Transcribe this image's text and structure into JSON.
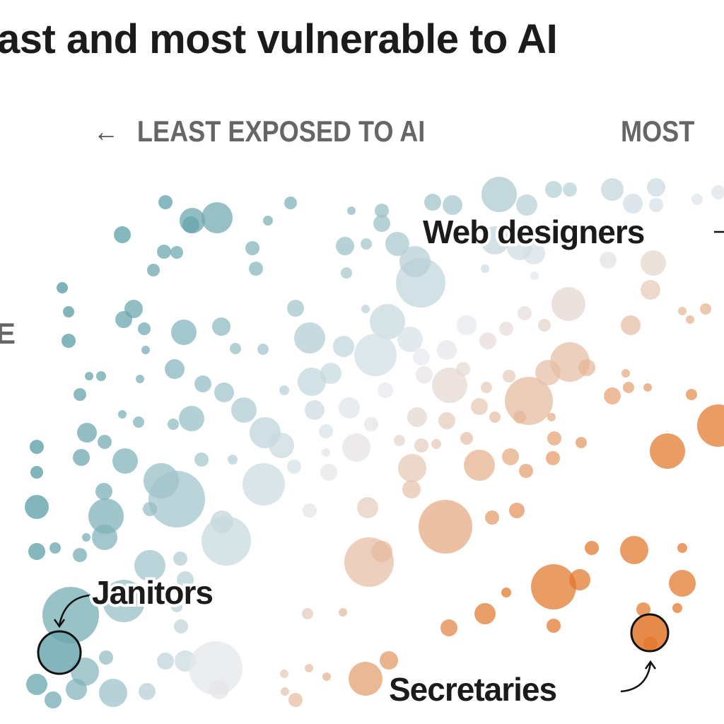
{
  "title": "ast and most vulnerable to AI",
  "axis": {
    "left_label": "LEAST EXPOSED TO AI",
    "right_label": "MOST",
    "left_edge_label": "E",
    "arrow_icon": "arrow-left-icon"
  },
  "annotations": {
    "web_designers": "Web designers",
    "janitors": "Janitors",
    "secretaries": "Secretaries"
  },
  "colors": {
    "teal": "#3f8f98",
    "neutral": "#e6e9ee",
    "orange": "#e2762a",
    "highlight_stroke": "#111111"
  },
  "chart_data": {
    "type": "scatter",
    "title": "",
    "xlabel": "LEAST EXPOSED TO AI / MOST",
    "ylabel": "",
    "grid": false,
    "legend": "none",
    "highlighted": [
      {
        "name": "Janitors",
        "x": 8.4,
        "y": 10.1,
        "size": 30
      },
      {
        "name": "Secretaries",
        "x": 91.9,
        "y": 12.9,
        "size": 26
      }
    ],
    "points": [
      [
        23.4,
        73.8,
        10
      ],
      [
        27.2,
        71.2,
        18
      ],
      [
        30.7,
        71.6,
        22
      ],
      [
        27,
        70.6,
        12
      ],
      [
        17.3,
        69.2,
        12
      ],
      [
        37.9,
        71.2,
        7
      ],
      [
        41.1,
        73.7,
        9
      ],
      [
        49.7,
        72.6,
        6
      ],
      [
        54,
        72.6,
        10
      ],
      [
        54,
        70.8,
        12
      ],
      [
        56.2,
        67.9,
        17
      ],
      [
        61.2,
        73.8,
        12
      ],
      [
        64,
        73.4,
        14
      ],
      [
        70.6,
        74.9,
        25
      ],
      [
        74.5,
        73.4,
        15
      ],
      [
        78.3,
        75.6,
        12
      ],
      [
        80.6,
        75.6,
        10
      ],
      [
        86.6,
        75.6,
        16
      ],
      [
        89.5,
        73.6,
        14
      ],
      [
        92.8,
        75.9,
        13
      ],
      [
        92.8,
        73.4,
        10
      ],
      [
        98.6,
        74.2,
        8
      ],
      [
        101.6,
        75.2,
        10
      ],
      [
        48.8,
        67.6,
        13
      ],
      [
        23.2,
        66.8,
        10
      ],
      [
        25,
        66.7,
        9
      ],
      [
        35.7,
        67.3,
        10
      ],
      [
        36.2,
        64.4,
        10
      ],
      [
        21.7,
        64.2,
        9
      ],
      [
        49,
        63.8,
        8
      ],
      [
        51.8,
        67.9,
        8
      ],
      [
        59.5,
        62.4,
        35
      ],
      [
        58.7,
        65.4,
        22
      ],
      [
        70,
        68.4,
        20
      ],
      [
        73.5,
        67.4,
        18
      ],
      [
        75.5,
        66.6,
        16
      ],
      [
        86,
        65.6,
        12
      ],
      [
        92.4,
        65.2,
        18
      ],
      [
        92,
        61.4,
        14
      ],
      [
        68.6,
        64.4,
        6
      ],
      [
        75.6,
        63.4,
        6
      ],
      [
        8.8,
        61.7,
        8
      ],
      [
        9.7,
        58.3,
        8
      ],
      [
        9.7,
        54.2,
        10
      ],
      [
        18.9,
        58.7,
        13
      ],
      [
        17.5,
        57.2,
        12
      ],
      [
        20.4,
        55.9,
        9
      ],
      [
        26,
        55.4,
        18
      ],
      [
        31.3,
        56.2,
        13
      ],
      [
        33.3,
        53.1,
        8
      ],
      [
        37.2,
        53,
        8
      ],
      [
        41.8,
        58.8,
        12
      ],
      [
        43.8,
        54.6,
        22
      ],
      [
        48.6,
        53.4,
        15
      ],
      [
        51.7,
        58.7,
        6
      ],
      [
        54.8,
        56.9,
        25
      ],
      [
        53.1,
        52.2,
        30
      ],
      [
        58,
        54.4,
        18
      ],
      [
        59.6,
        51.9,
        12
      ],
      [
        63.2,
        52.9,
        14
      ],
      [
        66,
        56.4,
        14
      ],
      [
        69,
        54.2,
        12
      ],
      [
        71.6,
        55.9,
        10
      ],
      [
        74.2,
        58.1,
        10
      ],
      [
        77,
        56.4,
        9
      ],
      [
        80.4,
        59.4,
        24
      ],
      [
        89.2,
        56.4,
        14
      ],
      [
        96.5,
        58.4,
        6
      ],
      [
        99.8,
        58.7,
        8
      ],
      [
        97.6,
        57.2,
        6
      ],
      [
        20.6,
        52.9,
        6
      ],
      [
        12.6,
        49.2,
        6
      ],
      [
        14.3,
        49.2,
        7
      ],
      [
        11.3,
        46.6,
        9
      ],
      [
        19.8,
        48.8,
        6
      ],
      [
        24.7,
        50.2,
        14
      ],
      [
        28.7,
        48.1,
        12
      ],
      [
        31.7,
        46.9,
        14
      ],
      [
        40.2,
        47.2,
        7
      ],
      [
        44.1,
        48.4,
        20
      ],
      [
        46.8,
        49.6,
        15
      ],
      [
        54.5,
        47.2,
        11
      ],
      [
        60,
        49.4,
        12
      ],
      [
        63.6,
        47.9,
        25
      ],
      [
        65.5,
        50.2,
        10
      ],
      [
        68.8,
        47.6,
        8
      ],
      [
        72,
        49.2,
        9
      ],
      [
        74.8,
        45.7,
        34
      ],
      [
        77.5,
        49.7,
        18
      ],
      [
        80.6,
        51.2,
        28
      ],
      [
        83,
        50.4,
        12
      ],
      [
        88.5,
        49.6,
        6
      ],
      [
        86.6,
        46.4,
        12
      ],
      [
        88.9,
        47.6,
        8
      ],
      [
        91.6,
        47.6,
        6
      ],
      [
        97.8,
        46.6,
        8
      ],
      [
        101.6,
        42.2,
        30
      ],
      [
        94.4,
        38.6,
        25
      ],
      [
        17.3,
        43.8,
        6
      ],
      [
        19.6,
        42.7,
        8
      ],
      [
        24.5,
        42.4,
        8
      ],
      [
        27.1,
        43.2,
        18
      ],
      [
        34.5,
        44.4,
        18
      ],
      [
        37.5,
        41.2,
        22
      ],
      [
        44.5,
        44.4,
        14
      ],
      [
        49.4,
        44.7,
        15
      ],
      [
        46.1,
        41.4,
        10
      ],
      [
        52.5,
        42.4,
        10
      ],
      [
        59,
        43.4,
        14
      ],
      [
        63.2,
        42.9,
        12
      ],
      [
        67.8,
        44.9,
        12
      ],
      [
        70,
        43.4,
        8
      ],
      [
        73.5,
        43.4,
        9
      ],
      [
        78,
        43.4,
        6
      ],
      [
        12.3,
        41.2,
        14
      ],
      [
        14.8,
        39.9,
        10
      ],
      [
        11.5,
        37.7,
        12
      ],
      [
        17.7,
        37.2,
        18
      ],
      [
        5.2,
        39.2,
        10
      ],
      [
        28.5,
        37.4,
        10
      ],
      [
        32.9,
        37.4,
        7
      ],
      [
        39.8,
        39.4,
        18
      ],
      [
        46.1,
        38.4,
        6
      ],
      [
        50.4,
        39.1,
        20
      ],
      [
        56.5,
        40.1,
        8
      ],
      [
        59.6,
        39.4,
        10
      ],
      [
        61.7,
        39.6,
        7
      ],
      [
        66,
        40.4,
        9
      ],
      [
        58.3,
        36.2,
        20
      ],
      [
        67.8,
        36.6,
        22
      ],
      [
        72.2,
        37.8,
        12
      ],
      [
        74.4,
        35.8,
        10
      ],
      [
        78.4,
        40.4,
        10
      ],
      [
        78.2,
        37.6,
        10
      ],
      [
        82.2,
        39.8,
        8
      ],
      [
        5.2,
        35.6,
        9
      ],
      [
        5.2,
        30.7,
        17
      ],
      [
        14.7,
        32.9,
        12
      ],
      [
        22.8,
        34.4,
        25
      ],
      [
        25,
        31.8,
        40
      ],
      [
        37.3,
        33.9,
        30
      ],
      [
        41.6,
        36.4,
        10
      ],
      [
        46.5,
        35.6,
        12
      ],
      [
        58.2,
        33.2,
        13
      ],
      [
        21.2,
        30.4,
        10
      ],
      [
        15,
        29.4,
        25
      ],
      [
        14.8,
        26.4,
        18
      ],
      [
        31.4,
        28.6,
        16
      ],
      [
        32,
        25.9,
        35
      ],
      [
        43.8,
        30.2,
        10
      ],
      [
        52,
        30.6,
        15
      ],
      [
        63,
        27.9,
        38
      ],
      [
        69.6,
        29.2,
        10
      ],
      [
        73.1,
        30.2,
        11
      ],
      [
        12.2,
        26.4,
        6
      ],
      [
        5.2,
        24.4,
        12
      ],
      [
        7.8,
        24.9,
        8
      ],
      [
        11.3,
        23.9,
        10
      ],
      [
        21.2,
        22.4,
        22
      ],
      [
        25.5,
        23.4,
        10
      ],
      [
        26.2,
        20.4,
        12
      ],
      [
        52.2,
        22.9,
        35
      ],
      [
        54,
        24.4,
        15
      ],
      [
        83.7,
        24.9,
        10
      ],
      [
        89.7,
        24.6,
        20
      ],
      [
        96.5,
        24.9,
        7
      ],
      [
        78.3,
        19.4,
        32
      ],
      [
        82,
        20.4,
        15
      ],
      [
        96.5,
        19.9,
        19
      ],
      [
        71.6,
        18.6,
        7
      ],
      [
        68.6,
        15.6,
        15
      ],
      [
        63.5,
        13.6,
        12
      ],
      [
        78.3,
        13.9,
        10
      ],
      [
        91,
        16.2,
        10
      ],
      [
        95.8,
        16.4,
        7
      ],
      [
        92,
        11.4,
        10
      ],
      [
        10,
        15.4,
        40
      ],
      [
        17.5,
        17.4,
        30
      ],
      [
        12,
        7.4,
        20
      ],
      [
        15,
        9.4,
        10
      ],
      [
        16,
        4.4,
        20
      ],
      [
        7.5,
        3.4,
        12
      ],
      [
        5.2,
        5.6,
        15
      ],
      [
        10.8,
        4.9,
        15
      ],
      [
        20.8,
        4.6,
        12
      ],
      [
        23.4,
        8.9,
        12
      ],
      [
        26.2,
        8.9,
        15
      ],
      [
        30.5,
        7.9,
        38
      ],
      [
        31,
        4.9,
        14
      ],
      [
        25.6,
        13.8,
        10
      ],
      [
        25,
        16.6,
        8
      ],
      [
        43.5,
        15.6,
        8
      ],
      [
        48.5,
        15.8,
        6
      ],
      [
        43.7,
        7.9,
        6
      ],
      [
        46.2,
        6.7,
        6
      ],
      [
        51.7,
        6.4,
        24
      ],
      [
        55,
        9,
        13
      ],
      [
        40.2,
        7.1,
        6
      ],
      [
        41.8,
        3.4,
        10
      ],
      [
        40.3,
        4.6,
        6
      ]
    ]
  }
}
